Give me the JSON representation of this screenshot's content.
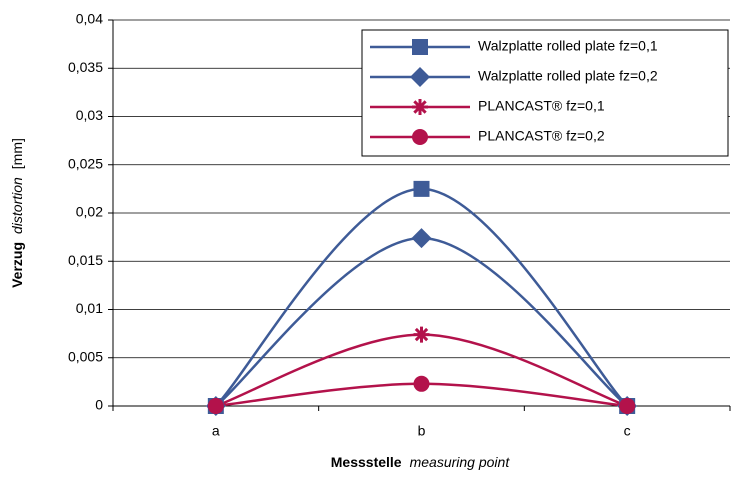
{
  "chart_data": {
    "type": "line",
    "categories": [
      "a",
      "b",
      "c"
    ],
    "series": [
      {
        "name": "Walzplatte  rolled plate  fz=0,1",
        "color": "#3e5b97",
        "marker": "square",
        "values": [
          0,
          0.0225,
          0
        ]
      },
      {
        "name": "Walzplatte  rolled plate  fz=0,2",
        "color": "#3e5b97",
        "marker": "diamond",
        "values": [
          0,
          0.0174,
          0
        ]
      },
      {
        "name": "PLANCAST®  fz=0,1",
        "color": "#b3124b",
        "marker": "asterisk",
        "values": [
          0,
          0.0074,
          0
        ]
      },
      {
        "name": "PLANCAST®  fz=0,2",
        "color": "#b3124b",
        "marker": "circle",
        "values": [
          0,
          0.0023,
          0
        ]
      }
    ],
    "ylim": [
      0,
      0.04
    ],
    "yticks": [
      0,
      {
        "value": 0.005,
        "label": "0,005"
      },
      {
        "value": 0.01,
        "label": "0,01"
      },
      {
        "value": 0.015,
        "label": "0,015"
      },
      {
        "value": 0.02,
        "label": "0,02"
      },
      {
        "value": 0.025,
        "label": "0,025"
      },
      {
        "value": 0.03,
        "label": "0,03"
      },
      {
        "value": 0.035,
        "label": "0,035"
      },
      {
        "value": 0.04,
        "label": "0,04"
      }
    ],
    "x_label": [
      "Messstelle",
      "measuring point"
    ],
    "y_label": [
      "Verzug",
      "distortion",
      "[mm]"
    ],
    "grid": true,
    "legend": "top-right",
    "smooth": true
  }
}
